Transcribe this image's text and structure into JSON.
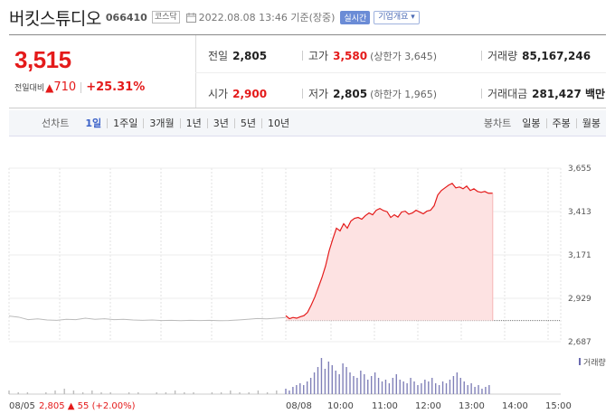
{
  "stock": {
    "name": "버킷스튜디오",
    "code": "066410",
    "market": "코스닥",
    "datetime": "2022.08.08 13:46 기준(장중)",
    "realtime_label": "실시간",
    "company_label": "기업개요 ▾"
  },
  "quote": {
    "price": "3,515",
    "prev_compare_label": "전일대비",
    "change_arrow": "▲",
    "change": "710",
    "change_pct": "+25.31%",
    "prev_close_label": "전일",
    "prev_close": "2,805",
    "open_label": "시가",
    "open": "2,900",
    "high_label": "고가",
    "high": "3,580",
    "upper_limit": "(상한가 3,645)",
    "low_label": "저가",
    "low": "2,805",
    "lower_limit": "(하한가 1,965)",
    "volume_label": "거래량",
    "volume": "85,167,246",
    "amount_label": "거래대금",
    "amount": "281,427 백만"
  },
  "period": {
    "label": "선차트",
    "options": [
      "1일",
      "1주일",
      "3개월",
      "1년",
      "3년",
      "5년",
      "10년"
    ],
    "selected": "1일",
    "candle_label": "봉차트",
    "candle_options": [
      "일봉",
      "주봉",
      "월봉"
    ]
  },
  "chart_data": {
    "type": "line",
    "y_ticks": [
      "3,655",
      "3,413",
      "3,171",
      "2,929",
      "2,687"
    ],
    "ylim": [
      2687,
      3655
    ],
    "prev_close": 2805,
    "x_ticks": [
      "08/05",
      "08/08",
      "10:00",
      "11:00",
      "12:00",
      "13:00",
      "14:00",
      "15:00"
    ],
    "prev_day_summary": {
      "close": "2,805",
      "arrow": "▲",
      "change": "55",
      "pct": "(+2.00%)"
    },
    "volume_legend": "거래량",
    "prev_day_series": [
      2830,
      2824,
      2810,
      2814,
      2808,
      2806,
      2812,
      2810,
      2818,
      2812,
      2815,
      2810,
      2812,
      2808,
      2806,
      2808,
      2805,
      2806,
      2804,
      2806,
      2805,
      2806,
      2804,
      2805,
      2808,
      2812,
      2816,
      2814,
      2818,
      2822
    ],
    "today_series": [
      [
        "09:00",
        2832
      ],
      [
        "09:05",
        2815
      ],
      [
        "09:10",
        2822
      ],
      [
        "09:15",
        2818
      ],
      [
        "09:20",
        2826
      ],
      [
        "09:25",
        2832
      ],
      [
        "09:30",
        2850
      ],
      [
        "09:35",
        2890
      ],
      [
        "09:40",
        2935
      ],
      [
        "09:45",
        2990
      ],
      [
        "09:50",
        3045
      ],
      [
        "09:55",
        3110
      ],
      [
        "10:00",
        3195
      ],
      [
        "10:05",
        3260
      ],
      [
        "10:10",
        3320
      ],
      [
        "10:15",
        3305
      ],
      [
        "10:20",
        3345
      ],
      [
        "10:25",
        3320
      ],
      [
        "10:30",
        3360
      ],
      [
        "10:35",
        3375
      ],
      [
        "10:40",
        3380
      ],
      [
        "10:45",
        3370
      ],
      [
        "10:50",
        3390
      ],
      [
        "10:55",
        3405
      ],
      [
        "11:00",
        3395
      ],
      [
        "11:05",
        3420
      ],
      [
        "11:10",
        3430
      ],
      [
        "11:15",
        3418
      ],
      [
        "11:20",
        3412
      ],
      [
        "11:25",
        3380
      ],
      [
        "11:30",
        3395
      ],
      [
        "11:35",
        3382
      ],
      [
        "11:40",
        3410
      ],
      [
        "11:45",
        3415
      ],
      [
        "11:50",
        3398
      ],
      [
        "11:55",
        3405
      ],
      [
        "12:00",
        3420
      ],
      [
        "12:05",
        3410
      ],
      [
        "12:10",
        3400
      ],
      [
        "12:15",
        3415
      ],
      [
        "12:20",
        3420
      ],
      [
        "12:25",
        3445
      ],
      [
        "12:30",
        3505
      ],
      [
        "12:35",
        3530
      ],
      [
        "12:40",
        3545
      ],
      [
        "12:45",
        3560
      ],
      [
        "12:50",
        3570
      ],
      [
        "12:55",
        3545
      ],
      [
        "13:00",
        3550
      ],
      [
        "13:05",
        3540
      ],
      [
        "13:10",
        3555
      ],
      [
        "13:15",
        3530
      ],
      [
        "13:20",
        3540
      ],
      [
        "13:25",
        3525
      ],
      [
        "13:30",
        3520
      ],
      [
        "13:35",
        3525
      ],
      [
        "13:40",
        3515
      ],
      [
        "13:46",
        3515
      ]
    ],
    "volume_series": [
      2,
      1,
      1,
      0,
      1,
      2,
      3,
      2,
      1,
      2,
      1,
      1,
      0,
      1,
      1,
      0,
      1,
      1,
      2,
      1,
      1,
      0,
      1,
      1,
      2,
      1,
      1,
      2,
      1,
      2,
      3,
      2,
      4,
      5,
      6,
      5,
      7,
      9,
      12,
      15,
      20,
      14,
      18,
      16,
      13,
      11,
      17,
      15,
      12,
      10,
      9,
      13,
      11,
      8,
      10,
      12,
      9,
      7,
      8,
      6,
      9,
      11,
      8,
      7,
      6,
      9,
      7,
      5,
      6,
      8,
      7,
      9,
      6,
      5,
      7,
      6,
      8,
      10,
      12,
      9,
      7,
      5,
      6,
      4,
      5,
      3,
      4,
      5
    ]
  }
}
